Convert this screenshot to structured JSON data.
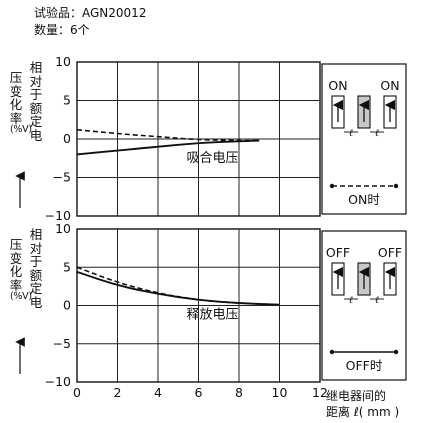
{
  "header": {
    "sample_line": "试验品：AGN20012",
    "count_line": "数量：6个"
  },
  "y_axis": {
    "top_text_a": "压变化率",
    "top_text_b": "相对于额定电",
    "bottom_text_a": "压变化率",
    "bottom_text_b": "相对于额定电",
    "unit": "(%V)"
  },
  "x_axis": {
    "label_line1": "继电器间的",
    "label_line2": "距离 ℓ( mm )"
  },
  "chart_data": [
    {
      "type": "line",
      "panel": "top",
      "annotation": "吸合电压",
      "xlim": [
        0,
        12
      ],
      "ylim": [
        -10,
        10
      ],
      "yticks": [
        10,
        5,
        0,
        -5,
        -10
      ],
      "grid": true,
      "series": [
        {
          "style": "dashed",
          "x": [
            0,
            2,
            4,
            6,
            8,
            9
          ],
          "y": [
            1.2,
            0.7,
            0.3,
            -0.1,
            -0.2,
            -0.2
          ]
        },
        {
          "style": "solid",
          "x": [
            0,
            2,
            4,
            6,
            8,
            9
          ],
          "y": [
            -2.0,
            -1.5,
            -1.0,
            -0.5,
            -0.3,
            -0.2
          ]
        }
      ],
      "legend_box": {
        "left_label": "ON",
        "right_label": "ON",
        "spacing_symbol": "ℓ",
        "caption": "ON时",
        "line_style": "dashed"
      }
    },
    {
      "type": "line",
      "panel": "bottom",
      "annotation": "释放电压",
      "xlim": [
        0,
        12
      ],
      "ylim": [
        -10,
        10
      ],
      "yticks": [
        10,
        5,
        0,
        -5,
        -10
      ],
      "xticks": [
        0,
        2,
        4,
        6,
        8,
        10,
        12
      ],
      "grid": true,
      "series": [
        {
          "style": "dashed",
          "x": [
            0,
            2,
            4,
            6,
            8,
            10
          ],
          "y": [
            5.0,
            3.0,
            1.6,
            0.7,
            0.3,
            0.1
          ]
        },
        {
          "style": "solid",
          "x": [
            0,
            2,
            4,
            6,
            8,
            10
          ],
          "y": [
            4.4,
            2.6,
            1.5,
            0.7,
            0.3,
            0.1
          ]
        }
      ],
      "legend_box": {
        "left_label": "OFF",
        "right_label": "OFF",
        "spacing_symbol": "ℓ",
        "caption": "OFF时",
        "line_style": "solid"
      }
    }
  ]
}
